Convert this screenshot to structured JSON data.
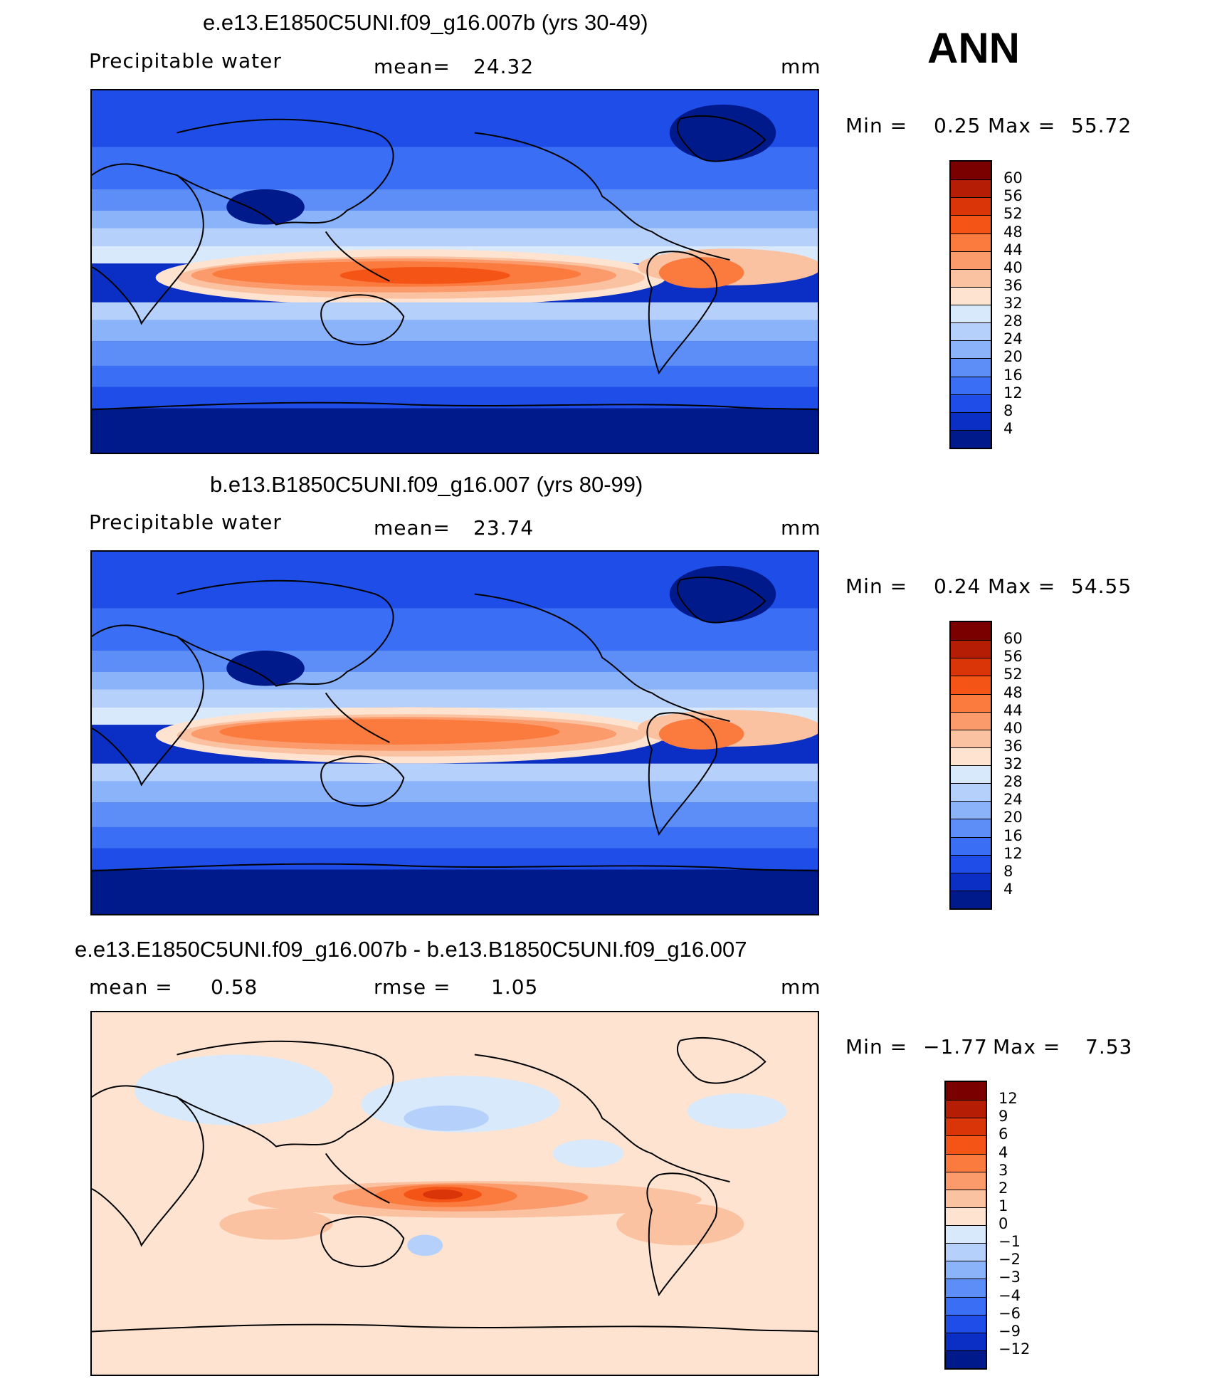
{
  "season": "ANN",
  "panels": [
    {
      "title": "e.e13.E1850C5UNI.f09_g16.007b (yrs 30-49)",
      "left_label": "Precipitable  water",
      "stat_label": "mean=",
      "stat_value": "24.32",
      "unit": "mm",
      "min_label": "Min  =",
      "min_value": "0.25",
      "max_label": "Max  =",
      "max_value": "55.72",
      "colorbar_labels": [
        "60",
        "56",
        "52",
        "48",
        "44",
        "40",
        "36",
        "32",
        "28",
        "24",
        "20",
        "16",
        "12",
        "8",
        "4"
      ],
      "colors": [
        "#7a0000",
        "#b51e05",
        "#d93508",
        "#f55417",
        "#fb7a3d",
        "#fb9a6b",
        "#fbc2a2",
        "#fde3d0",
        "#d8e9fb",
        "#b5d0fb",
        "#8bb3fa",
        "#5d8ef8",
        "#3a6ef5",
        "#1f4de8",
        "#0b2fc4",
        "#001a8c"
      ]
    },
    {
      "title": "b.e13.B1850C5UNI.f09_g16.007 (yrs 80-99)",
      "left_label": "Precipitable  water",
      "stat_label": "mean=",
      "stat_value": "23.74",
      "unit": "mm",
      "min_label": "Min  =",
      "min_value": "0.24",
      "max_label": "Max  =",
      "max_value": "54.55",
      "colorbar_labels": [
        "60",
        "56",
        "52",
        "48",
        "44",
        "40",
        "36",
        "32",
        "28",
        "24",
        "20",
        "16",
        "12",
        "8",
        "4"
      ],
      "colors": [
        "#7a0000",
        "#b51e05",
        "#d93508",
        "#f55417",
        "#fb7a3d",
        "#fb9a6b",
        "#fbc2a2",
        "#fde3d0",
        "#d8e9fb",
        "#b5d0fb",
        "#8bb3fa",
        "#5d8ef8",
        "#3a6ef5",
        "#1f4de8",
        "#0b2fc4",
        "#001a8c"
      ]
    },
    {
      "title": "e.e13.E1850C5UNI.f09_g16.007b - b.e13.B1850C5UNI.f09_g16.007",
      "left_label": "mean  =",
      "left_value": "0.58",
      "stat_label": "rmse  =",
      "stat_value": "1.05",
      "unit": "mm",
      "min_label": "Min  =",
      "min_value": "−1.77",
      "max_label": "Max  =",
      "max_value": "7.53",
      "colorbar_labels": [
        "12",
        "9",
        "6",
        "4",
        "3",
        "2",
        "1",
        "0",
        "−1",
        "−2",
        "−3",
        "−4",
        "−6",
        "−9",
        "−12"
      ],
      "colors": [
        "#7a0000",
        "#b51e05",
        "#d93508",
        "#f55417",
        "#fb7a3d",
        "#fb9a6b",
        "#fbc2a2",
        "#fde3d0",
        "#d8e9fb",
        "#b5d0fb",
        "#8bb3fa",
        "#5d8ef8",
        "#3a6ef5",
        "#1f4de8",
        "#0b2fc4",
        "#001a8c"
      ]
    }
  ]
}
